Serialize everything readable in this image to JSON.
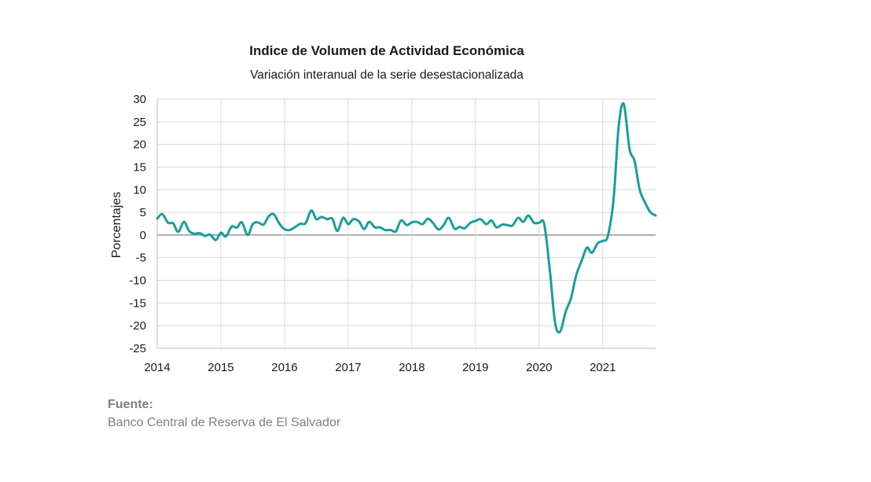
{
  "chart_data": {
    "type": "line",
    "title": "Indice de Volumen de  Actividad Económica",
    "subtitle": "Variación interanual de la serie desestacionalizada",
    "ylabel": "Porcentajes",
    "xlabel": "",
    "ylim": [
      -25,
      30
    ],
    "yticks": [
      "30",
      "25",
      "20",
      "15",
      "10",
      "5",
      "0",
      "-5",
      "-10",
      "-15",
      "-20",
      "-25"
    ],
    "xlim": [
      2014.0,
      2021.83
    ],
    "xticks": [
      "2014",
      "2015",
      "2016",
      "2017",
      "2018",
      "2019",
      "2020",
      "2021"
    ],
    "grid": true,
    "line_color": "#1a9e99",
    "series": [
      {
        "values": [
          [
            2014.0,
            3.6
          ],
          [
            2014.08,
            4.6
          ],
          [
            2014.17,
            2.7
          ],
          [
            2014.25,
            2.6
          ],
          [
            2014.33,
            0.7
          ],
          [
            2014.42,
            2.9
          ],
          [
            2014.5,
            0.9
          ],
          [
            2014.58,
            0.3
          ],
          [
            2014.67,
            0.4
          ],
          [
            2014.75,
            -0.2
          ],
          [
            2014.83,
            0.1
          ],
          [
            2014.92,
            -1.1
          ],
          [
            2015.0,
            0.5
          ],
          [
            2015.08,
            -0.3
          ],
          [
            2015.17,
            1.9
          ],
          [
            2015.25,
            1.6
          ],
          [
            2015.33,
            2.8
          ],
          [
            2015.42,
            0.0
          ],
          [
            2015.5,
            2.4
          ],
          [
            2015.58,
            2.8
          ],
          [
            2015.67,
            2.3
          ],
          [
            2015.75,
            4.1
          ],
          [
            2015.83,
            4.6
          ],
          [
            2015.92,
            2.5
          ],
          [
            2016.0,
            1.3
          ],
          [
            2016.08,
            1.1
          ],
          [
            2016.17,
            1.8
          ],
          [
            2016.25,
            2.5
          ],
          [
            2016.33,
            2.6
          ],
          [
            2016.42,
            5.4
          ],
          [
            2016.5,
            3.5
          ],
          [
            2016.58,
            4.0
          ],
          [
            2016.67,
            3.5
          ],
          [
            2016.75,
            3.6
          ],
          [
            2016.83,
            0.9
          ],
          [
            2016.92,
            3.8
          ],
          [
            2017.0,
            2.4
          ],
          [
            2017.08,
            3.5
          ],
          [
            2017.17,
            3.0
          ],
          [
            2017.25,
            1.3
          ],
          [
            2017.33,
            2.9
          ],
          [
            2017.42,
            1.7
          ],
          [
            2017.5,
            1.7
          ],
          [
            2017.58,
            1.1
          ],
          [
            2017.67,
            1.1
          ],
          [
            2017.75,
            0.8
          ],
          [
            2017.83,
            3.2
          ],
          [
            2017.92,
            2.2
          ],
          [
            2018.0,
            2.8
          ],
          [
            2018.08,
            2.9
          ],
          [
            2018.17,
            2.4
          ],
          [
            2018.25,
            3.6
          ],
          [
            2018.33,
            2.7
          ],
          [
            2018.42,
            1.2
          ],
          [
            2018.5,
            2.2
          ],
          [
            2018.58,
            3.8
          ],
          [
            2018.67,
            1.4
          ],
          [
            2018.75,
            1.8
          ],
          [
            2018.83,
            1.5
          ],
          [
            2018.92,
            2.7
          ],
          [
            2019.0,
            3.1
          ],
          [
            2019.08,
            3.5
          ],
          [
            2019.17,
            2.4
          ],
          [
            2019.25,
            3.2
          ],
          [
            2019.33,
            1.7
          ],
          [
            2019.42,
            2.3
          ],
          [
            2019.5,
            2.2
          ],
          [
            2019.58,
            2.1
          ],
          [
            2019.67,
            3.8
          ],
          [
            2019.75,
            2.9
          ],
          [
            2019.83,
            4.3
          ],
          [
            2019.92,
            2.7
          ],
          [
            2020.0,
            2.7
          ],
          [
            2020.08,
            2.4
          ],
          [
            2020.17,
            -8.0
          ],
          [
            2020.25,
            -19.3
          ],
          [
            2020.33,
            -21.3
          ],
          [
            2020.42,
            -16.8
          ],
          [
            2020.5,
            -14.0
          ],
          [
            2020.58,
            -9.0
          ],
          [
            2020.67,
            -5.6
          ],
          [
            2020.75,
            -2.8
          ],
          [
            2020.83,
            -3.9
          ],
          [
            2020.92,
            -1.8
          ],
          [
            2021.0,
            -1.3
          ],
          [
            2021.08,
            -0.2
          ],
          [
            2021.17,
            8.0
          ],
          [
            2021.25,
            24.0
          ],
          [
            2021.33,
            28.9
          ],
          [
            2021.42,
            19.0
          ],
          [
            2021.5,
            16.3
          ],
          [
            2021.58,
            10.0
          ],
          [
            2021.67,
            7.0
          ],
          [
            2021.75,
            5.0
          ],
          [
            2021.83,
            4.3
          ]
        ]
      }
    ]
  },
  "source": {
    "title": "Fuente:",
    "text": "Banco Central de Reserva de El Salvador"
  }
}
